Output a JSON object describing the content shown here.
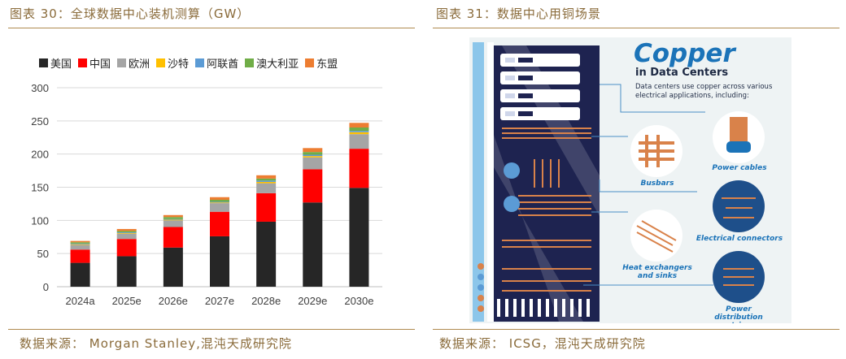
{
  "left_panel": {
    "title": "图表 30：全球数据中心装机测算（GW）",
    "source": "数据来源：  Morgan Stanley,混沌天成研究院"
  },
  "right_panel": {
    "title": "图表 31：数据中心用铜场景",
    "source": "数据来源：  ICSG，混沌天成研究院",
    "infographic": {
      "heading": "Copper",
      "subheading": "in Data Centers",
      "description": "Data centers use copper across various electrical applications, including:",
      "labels": {
        "power_cables": "Power cables",
        "busbars": "Busbars",
        "electrical_connectors": "Electrical connectors",
        "heat_exchangers": "Heat exchangers and sinks",
        "power_distribution": "Power distribution strips"
      },
      "colors": {
        "copper": "#d9824a",
        "rack": "#1e2350",
        "accent_blue": "#1b73b8",
        "circle_bg": "#1e4f8a"
      }
    }
  },
  "chart_data": {
    "type": "bar",
    "stacked": true,
    "categories": [
      "2024a",
      "2025e",
      "2026e",
      "2027e",
      "2028e",
      "2029e",
      "2030e"
    ],
    "series": [
      {
        "name": "美国",
        "color": "#262626",
        "values": [
          36,
          46,
          59,
          76,
          98,
          127,
          149
        ]
      },
      {
        "name": "中国",
        "color": "#ff0000",
        "values": [
          20,
          26,
          31,
          37,
          43,
          50,
          59
        ]
      },
      {
        "name": "欧洲",
        "color": "#a5a5a5",
        "values": [
          7,
          8,
          10,
          13,
          15,
          18,
          22
        ]
      },
      {
        "name": "沙特",
        "color": "#ffc000",
        "values": [
          1,
          1,
          1,
          1,
          2,
          2,
          3
        ]
      },
      {
        "name": "阿联酋",
        "color": "#5b9bd5",
        "values": [
          1,
          1,
          1,
          1,
          2,
          2,
          2
        ]
      },
      {
        "name": "澳大利亚",
        "color": "#70ad47",
        "values": [
          2,
          2,
          3,
          3,
          3,
          4,
          5
        ]
      },
      {
        "name": "东盟",
        "color": "#ed7d31",
        "values": [
          2,
          3,
          3,
          4,
          5,
          6,
          7
        ]
      }
    ],
    "yticks": [
      0,
      50,
      100,
      150,
      200,
      250,
      300
    ],
    "ylim": [
      0,
      300
    ],
    "grid": true,
    "legend_position": "top"
  }
}
